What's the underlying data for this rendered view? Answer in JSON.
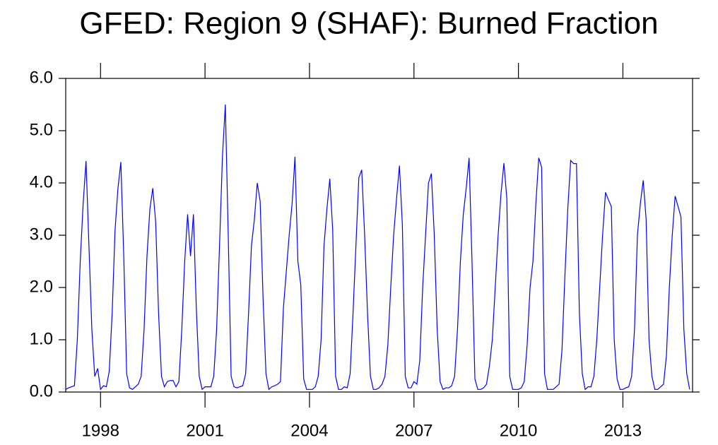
{
  "chart_data": {
    "type": "line",
    "title": "GFED: Region 9 (SHAF): Burned Fraction",
    "x": [
      1997,
      1997.0833,
      1997.1667,
      1997.25,
      1997.3333,
      1997.4167,
      1997.5,
      1997.5833,
      1997.6667,
      1997.75,
      1997.8333,
      1997.9167,
      1998,
      1998.0833,
      1998.1667,
      1998.25,
      1998.3333,
      1998.4167,
      1998.5,
      1998.5833,
      1998.6667,
      1998.75,
      1998.8333,
      1998.9167,
      1999,
      1999.0833,
      1999.1667,
      1999.25,
      1999.3333,
      1999.4167,
      1999.5,
      1999.5833,
      1999.6667,
      1999.75,
      1999.8333,
      1999.9167,
      2000,
      2000.0833,
      2000.1667,
      2000.25,
      2000.3333,
      2000.4167,
      2000.5,
      2000.5833,
      2000.6667,
      2000.75,
      2000.8333,
      2000.9167,
      2001,
      2001.0833,
      2001.1667,
      2001.25,
      2001.3333,
      2001.4167,
      2001.5,
      2001.5833,
      2001.6667,
      2001.75,
      2001.8333,
      2001.9167,
      2002,
      2002.0833,
      2002.1667,
      2002.25,
      2002.3333,
      2002.4167,
      2002.5,
      2002.5833,
      2002.6667,
      2002.75,
      2002.8333,
      2002.9167,
      2003,
      2003.0833,
      2003.1667,
      2003.25,
      2003.3333,
      2003.4167,
      2003.5,
      2003.5833,
      2003.6667,
      2003.75,
      2003.8333,
      2003.9167,
      2004,
      2004.0833,
      2004.1667,
      2004.25,
      2004.3333,
      2004.4167,
      2004.5,
      2004.5833,
      2004.6667,
      2004.75,
      2004.8333,
      2004.9167,
      2005,
      2005.0833,
      2005.1667,
      2005.25,
      2005.3333,
      2005.4167,
      2005.5,
      2005.5833,
      2005.6667,
      2005.75,
      2005.8333,
      2005.9167,
      2006,
      2006.0833,
      2006.1667,
      2006.25,
      2006.3333,
      2006.4167,
      2006.5,
      2006.5833,
      2006.6667,
      2006.75,
      2006.8333,
      2006.9167,
      2007,
      2007.0833,
      2007.1667,
      2007.25,
      2007.3333,
      2007.4167,
      2007.5,
      2007.5833,
      2007.6667,
      2007.75,
      2007.8333,
      2007.9167,
      2008,
      2008.0833,
      2008.1667,
      2008.25,
      2008.3333,
      2008.4167,
      2008.5,
      2008.5833,
      2008.6667,
      2008.75,
      2008.8333,
      2008.9167,
      2009,
      2009.0833,
      2009.1667,
      2009.25,
      2009.3333,
      2009.4167,
      2009.5,
      2009.5833,
      2009.6667,
      2009.75,
      2009.8333,
      2009.9167,
      2010,
      2010.0833,
      2010.1667,
      2010.25,
      2010.3333,
      2010.4167,
      2010.5,
      2010.5833,
      2010.6667,
      2010.75,
      2010.8333,
      2010.9167,
      2011,
      2011.0833,
      2011.1667,
      2011.25,
      2011.3333,
      2011.4167,
      2011.5,
      2011.5833,
      2011.6667,
      2011.75,
      2011.8333,
      2011.9167,
      2012,
      2012.0833,
      2012.1667,
      2012.25,
      2012.3333,
      2012.4167,
      2012.5,
      2012.5833,
      2012.6667,
      2012.75,
      2012.8333,
      2012.9167,
      2013,
      2013.0833,
      2013.1667,
      2013.25,
      2013.3333,
      2013.4167,
      2013.5,
      2013.5833,
      2013.6667,
      2013.75,
      2013.8333,
      2013.9167,
      2014,
      2014.0833,
      2014.1667,
      2014.25,
      2014.3333,
      2014.4167,
      2014.5,
      2014.5833,
      2014.6667,
      2014.75,
      2014.8333,
      2014.9167
    ],
    "series": [
      {
        "color": "#0000ff",
        "values": [
          0.05,
          0.08,
          0.1,
          0.12,
          1.0,
          2.5,
          3.6,
          4.42,
          2.8,
          1.2,
          0.3,
          0.45,
          0.05,
          0.12,
          0.1,
          0.4,
          1.5,
          3.1,
          3.9,
          4.4,
          2.6,
          0.35,
          0.08,
          0.05,
          0.1,
          0.15,
          0.3,
          1.2,
          2.6,
          3.5,
          3.9,
          3.25,
          1.5,
          0.3,
          0.1,
          0.2,
          0.22,
          0.22,
          0.1,
          0.2,
          1.2,
          2.5,
          3.4,
          2.6,
          3.4,
          1.6,
          0.3,
          0.05,
          0.1,
          0.1,
          0.1,
          0.3,
          1.2,
          2.8,
          4.5,
          5.5,
          3.0,
          0.3,
          0.1,
          0.08,
          0.1,
          0.12,
          0.35,
          1.5,
          2.8,
          3.3,
          4.0,
          3.65,
          1.8,
          0.35,
          0.05,
          0.1,
          0.12,
          0.15,
          0.2,
          1.6,
          2.3,
          3.0,
          3.6,
          4.5,
          2.5,
          2.05,
          0.25,
          0.05,
          0.05,
          0.05,
          0.1,
          0.3,
          1.0,
          2.8,
          3.5,
          4.08,
          3.1,
          0.3,
          0.05,
          0.05,
          0.1,
          0.08,
          0.35,
          1.5,
          2.8,
          4.1,
          4.25,
          3.0,
          1.5,
          0.3,
          0.05,
          0.05,
          0.08,
          0.15,
          0.3,
          0.9,
          2.0,
          3.0,
          3.7,
          4.33,
          3.2,
          0.3,
          0.08,
          0.08,
          0.2,
          0.15,
          0.6,
          2.0,
          3.0,
          4.0,
          4.18,
          3.0,
          1.2,
          0.2,
          0.05,
          0.08,
          0.08,
          0.12,
          0.3,
          1.2,
          2.5,
          3.4,
          3.9,
          4.48,
          2.5,
          0.25,
          0.05,
          0.05,
          0.08,
          0.15,
          0.5,
          1.0,
          2.0,
          3.0,
          3.8,
          4.38,
          3.7,
          0.3,
          0.05,
          0.05,
          0.05,
          0.08,
          0.2,
          0.9,
          2.0,
          2.5,
          3.6,
          4.48,
          4.3,
          0.35,
          0.05,
          0.05,
          0.05,
          0.1,
          0.15,
          0.8,
          2.2,
          3.5,
          4.43,
          4.37,
          4.37,
          1.5,
          0.35,
          0.05,
          0.1,
          0.1,
          0.3,
          1.0,
          2.0,
          3.0,
          3.82,
          3.68,
          3.55,
          1.0,
          0.25,
          0.05,
          0.05,
          0.08,
          0.1,
          0.3,
          1.2,
          3.0,
          3.6,
          4.05,
          3.3,
          1.0,
          0.3,
          0.05,
          0.05,
          0.1,
          0.15,
          0.7,
          2.0,
          3.0,
          3.75,
          3.55,
          3.35,
          1.2,
          0.35,
          0.05
        ]
      }
    ],
    "xlim": [
      1997,
      2015
    ],
    "xticks": [
      1998,
      2001,
      2004,
      2007,
      2010,
      2013
    ],
    "ylim": [
      0,
      6
    ],
    "yticks": [
      {
        "value": 0,
        "label": "0.0"
      },
      {
        "value": 1,
        "label": "1.0"
      },
      {
        "value": 2,
        "label": "2.0"
      },
      {
        "value": 3,
        "label": "3.0"
      },
      {
        "value": 4,
        "label": "4.0"
      },
      {
        "value": 5,
        "label": "5.0"
      },
      {
        "value": 6,
        "label": "6.0"
      }
    ]
  }
}
